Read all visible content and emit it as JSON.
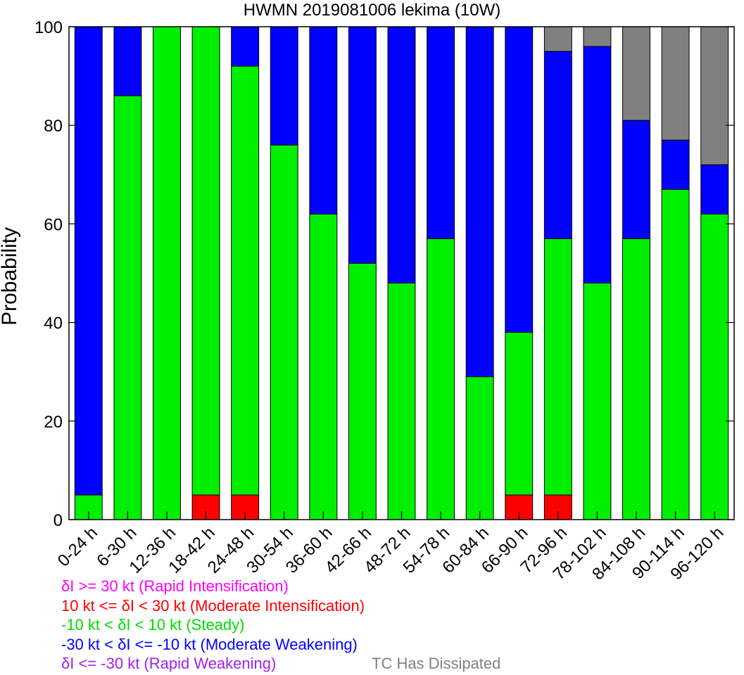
{
  "chart_data": {
    "type": "stacked-bar",
    "title": "HWMN 2019081006 lekima (10W)",
    "xlabel": "",
    "ylabel": "Probability",
    "ylim": [
      0,
      100
    ],
    "yticks": [
      0,
      20,
      40,
      60,
      80,
      100
    ],
    "categories": [
      "0-24 h",
      "6-30 h",
      "12-36 h",
      "18-42 h",
      "24-48 h",
      "30-54 h",
      "36-60 h",
      "42-66 h",
      "48-72 h",
      "54-78 h",
      "60-84 h",
      "66-90 h",
      "72-96 h",
      "78-102 h",
      "84-108 h",
      "90-114 h",
      "96-120 h"
    ],
    "series": [
      {
        "name": "Rapid Intensification",
        "color": "#ff00ff",
        "values": [
          0,
          0,
          0,
          0,
          0,
          0,
          0,
          0,
          0,
          0,
          0,
          0,
          0,
          0,
          0,
          0,
          0
        ]
      },
      {
        "name": "Moderate Intensification",
        "color": "#ff0000",
        "values": [
          0,
          0,
          0,
          5,
          5,
          0,
          0,
          0,
          0,
          0,
          0,
          5,
          5,
          0,
          0,
          0,
          0
        ]
      },
      {
        "name": "Steady",
        "color": "#00ee00",
        "values": [
          5,
          86,
          100,
          95,
          87,
          76,
          62,
          52,
          48,
          57,
          29,
          33,
          52,
          48,
          57,
          67,
          62
        ]
      },
      {
        "name": "Moderate Weakening",
        "color": "#0000ff",
        "values": [
          95,
          14,
          0,
          0,
          8,
          24,
          38,
          48,
          52,
          43,
          71,
          62,
          38,
          48,
          24,
          10,
          10
        ]
      },
      {
        "name": "Rapid Weakening",
        "color": "#a020f0",
        "values": [
          0,
          0,
          0,
          0,
          0,
          0,
          0,
          0,
          0,
          0,
          0,
          0,
          0,
          0,
          0,
          0,
          0
        ]
      },
      {
        "name": "TC Has Dissipated",
        "color": "#808080",
        "values": [
          0,
          0,
          0,
          0,
          0,
          0,
          0,
          0,
          0,
          0,
          0,
          0,
          5,
          4,
          19,
          23,
          28
        ]
      }
    ],
    "legend": {
      "placement": "bottom-left",
      "entries": [
        {
          "text": "δI >= 30 kt (Rapid Intensification)",
          "color": "#ff00ff"
        },
        {
          "text": "10 kt <= δI < 30 kt (Moderate Intensification)",
          "color": "#ff0000"
        },
        {
          "text": "-10 kt < δI < 10 kt (Steady)",
          "color": "#00dd00"
        },
        {
          "text": "-30 kt < δI <= -10 kt (Moderate Weakening)",
          "color": "#0000ff"
        },
        {
          "text": "δI <= -30 kt (Rapid Weakening)",
          "color": "#a020f0"
        }
      ],
      "dissipated": {
        "text": "TC Has Dissipated",
        "color": "#808080"
      }
    }
  }
}
